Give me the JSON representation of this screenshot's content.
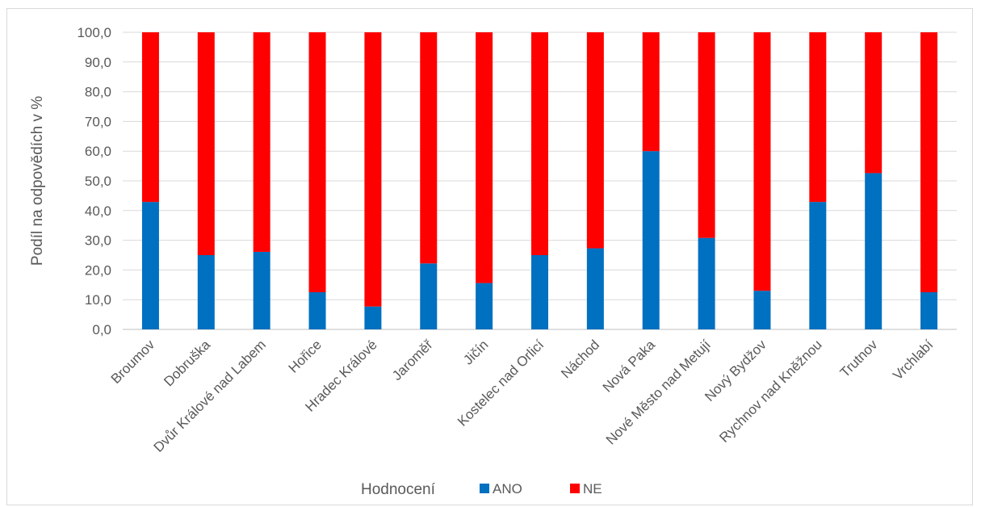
{
  "chart_data": {
    "type": "bar",
    "stacked": true,
    "categories": [
      "Broumov",
      "Dobruška",
      "Dvůr Králové nad Labem",
      "Hořice",
      "Hradec Králové",
      "Jaroměř",
      "Jičín",
      "Kostelec nad Orlicí",
      "Náchod",
      "Nová Paka",
      "Nové Město nad Metují",
      "Nový Bydžov",
      "Rychnov nad Kněžnou",
      "Trutnov",
      "Vrchlabí"
    ],
    "series": [
      {
        "name": "ANO",
        "color": "#0070c0",
        "values": [
          42.9,
          25.0,
          26.1,
          12.5,
          7.7,
          22.2,
          15.6,
          25.0,
          27.3,
          60.0,
          30.8,
          13.0,
          42.9,
          52.6,
          12.5
        ]
      },
      {
        "name": "NE",
        "color": "#ff0000",
        "values": [
          57.1,
          75.0,
          73.9,
          87.5,
          92.3,
          77.8,
          84.4,
          75.0,
          72.7,
          40.0,
          69.2,
          87.0,
          57.1,
          47.4,
          87.5
        ]
      }
    ],
    "ylabel": "Podíl na odpovědích v %",
    "yticks": [
      "0,0",
      "10,0",
      "20,0",
      "30,0",
      "40,0",
      "50,0",
      "60,0",
      "70,0",
      "80,0",
      "90,0",
      "100,0"
    ],
    "ylim": [
      0,
      100
    ],
    "grid": true,
    "legend": {
      "title": "Hodnocení",
      "position": "bottom"
    }
  }
}
